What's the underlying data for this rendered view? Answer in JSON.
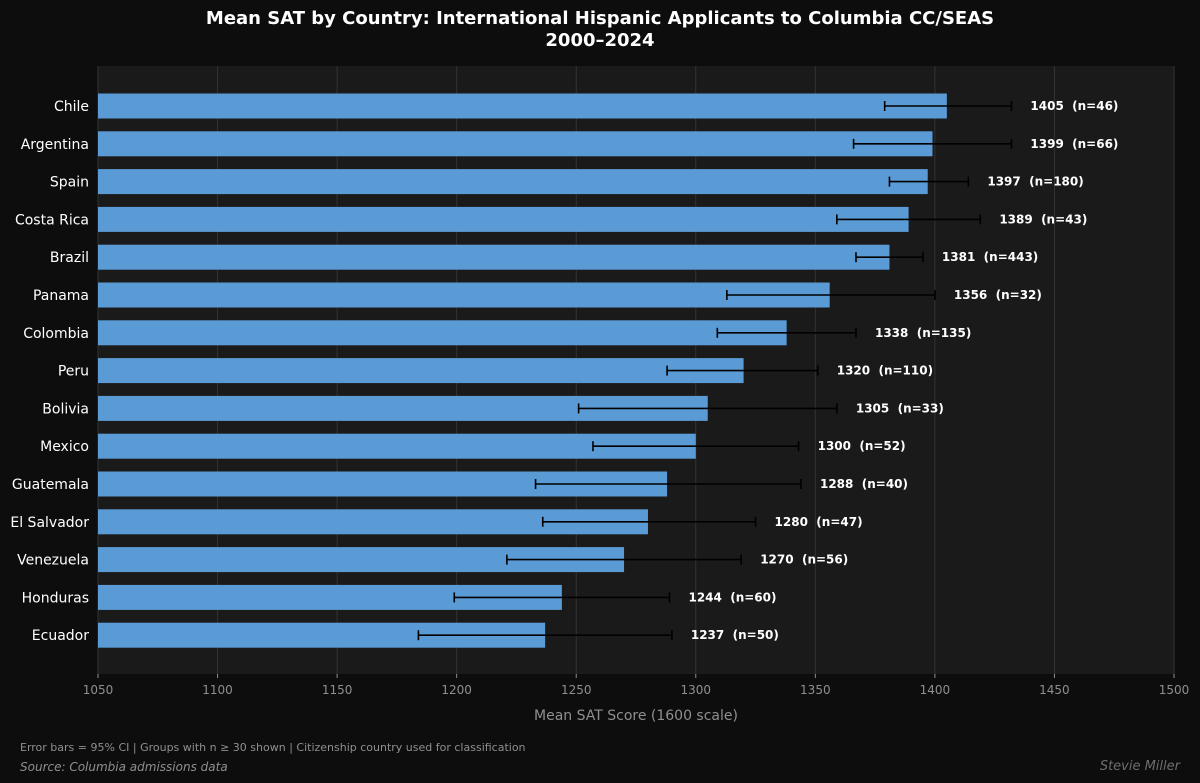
{
  "chart_data": {
    "type": "bar",
    "orientation": "horizontal",
    "title": "Mean SAT by Country: International Hispanic Applicants to Columbia CC/SEAS",
    "subtitle": "2000–2024",
    "xlabel": "Mean SAT Score (1600 scale)",
    "ylabel": "",
    "xlim": [
      1050,
      1500
    ],
    "xticks": [
      1050,
      1100,
      1150,
      1200,
      1250,
      1300,
      1350,
      1400,
      1450,
      1500
    ],
    "grid": "vertical",
    "categories": [
      "Chile",
      "Argentina",
      "Spain",
      "Costa Rica",
      "Brazil",
      "Panama",
      "Colombia",
      "Peru",
      "Bolivia",
      "Mexico",
      "Guatemala",
      "El Salvador",
      "Venezuela",
      "Honduras",
      "Ecuador"
    ],
    "values": [
      1405,
      1399,
      1397,
      1389,
      1381,
      1356,
      1338,
      1320,
      1305,
      1300,
      1288,
      1280,
      1270,
      1244,
      1237
    ],
    "ci_low": [
      1379,
      1366,
      1381,
      1359,
      1367,
      1313,
      1309,
      1288,
      1251,
      1257,
      1233,
      1236,
      1221,
      1199,
      1184
    ],
    "ci_high": [
      1432,
      1432,
      1414,
      1419,
      1395,
      1400,
      1367,
      1351,
      1359,
      1343,
      1344,
      1325,
      1319,
      1289,
      1290
    ],
    "data_labels": [
      "1405  (n=46)",
      "1399  (n=66)",
      "1397  (n=180)",
      "1389  (n=43)",
      "1381  (n=443)",
      "1356  (n=32)",
      "1338  (n=135)",
      "1320  (n=110)",
      "1305  (n=33)",
      "1300  (n=52)",
      "1288  (n=40)",
      "1280  (n=47)",
      "1270  (n=56)",
      "1244  (n=60)",
      "1237  (n=50)"
    ],
    "bar_color": "#5b9bd5",
    "error_bar_color": "#000000",
    "plot_background": "#1a1a1a",
    "page_background": "#0d0d0d"
  },
  "footnote": "Error bars = 95% CI  |  Groups with n ≥ 30 shown  |  Citizenship country used for classification",
  "source": "Source: Columbia admissions data",
  "credit": "Stevie Miller"
}
